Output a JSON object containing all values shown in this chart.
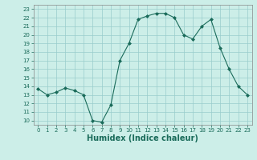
{
  "x": [
    0,
    1,
    2,
    3,
    4,
    5,
    6,
    7,
    8,
    9,
    10,
    11,
    12,
    13,
    14,
    15,
    16,
    17,
    18,
    19,
    20,
    21,
    22,
    23
  ],
  "y": [
    13.7,
    13.0,
    13.3,
    13.8,
    13.5,
    13.0,
    10.0,
    9.8,
    11.8,
    17.0,
    19.0,
    21.8,
    22.2,
    22.5,
    22.5,
    22.0,
    20.0,
    19.5,
    21.0,
    21.8,
    18.5,
    16.0,
    14.0,
    13.0
  ],
  "line_color": "#1a6b5a",
  "marker": "D",
  "marker_size": 2,
  "bg_color": "#cceee8",
  "grid_color": "#99cccc",
  "xlabel": "Humidex (Indice chaleur)",
  "xlabel_fontsize": 7,
  "tick_fontsize": 5,
  "ylim": [
    9.5,
    23.5
  ],
  "xlim": [
    -0.5,
    23.5
  ],
  "yticks": [
    10,
    11,
    12,
    13,
    14,
    15,
    16,
    17,
    18,
    19,
    20,
    21,
    22,
    23
  ],
  "xticks": [
    0,
    1,
    2,
    3,
    4,
    5,
    6,
    7,
    8,
    9,
    10,
    11,
    12,
    13,
    14,
    15,
    16,
    17,
    18,
    19,
    20,
    21,
    22,
    23
  ]
}
